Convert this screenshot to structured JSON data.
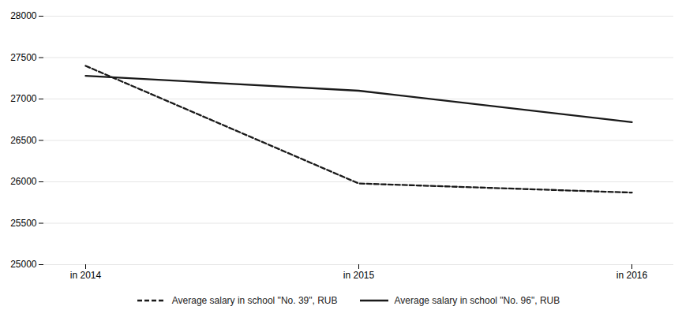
{
  "chart_data": {
    "type": "line",
    "categories": [
      "in 2014",
      "in 2015",
      "in 2016"
    ],
    "series": [
      {
        "name": "Average salary in school \"No. 39\", RUB",
        "color": "#1a1a1a",
        "line_style": "dashed",
        "values": [
          27400,
          25980,
          25870
        ]
      },
      {
        "name": "Average salary in school \"No. 96\", RUB",
        "color": "#1a1a1a",
        "line_style": "solid",
        "values": [
          27280,
          27100,
          26720
        ]
      }
    ],
    "ylim": [
      25000,
      28000
    ],
    "yticks": [
      25000,
      25500,
      26000,
      26500,
      27000,
      27500,
      28000
    ],
    "grid": true,
    "legend": "bottom"
  }
}
